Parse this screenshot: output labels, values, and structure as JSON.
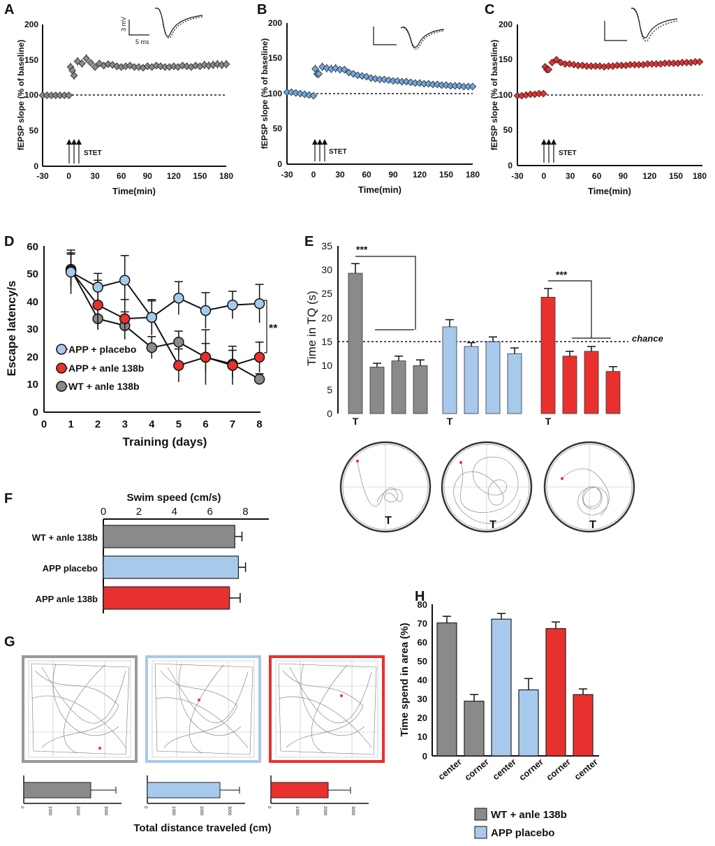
{
  "colors": {
    "wt": "#8a8a8a",
    "placebo": "#a7c9ec",
    "placebo_marker": "#6fa8e0",
    "anle": "#e8312f",
    "black": "#111111"
  },
  "panel_labels": [
    "A",
    "B",
    "C",
    "D",
    "E",
    "F",
    "G",
    "H"
  ],
  "ltp": {
    "ylabel": "fEPSP slope (% of baseline)",
    "xlabel": "Time(min)",
    "stim_label": "STET",
    "scale_a_mv": "3 mV",
    "scale_a_ms": "5 ms",
    "yticks": [
      "0",
      "50",
      "100",
      "150",
      "200"
    ],
    "xticks": [
      "-30",
      "0",
      "30",
      "60",
      "90",
      "120",
      "150",
      "180"
    ],
    "ylim": [
      0,
      200
    ],
    "xlim": [
      -30,
      180
    ]
  },
  "panel_d": {
    "ylabel": "Escape latency/s",
    "xlabel": "Training (days)",
    "yticks": [
      "0",
      "10",
      "20",
      "30",
      "40",
      "50",
      "60"
    ],
    "xticks": [
      "0",
      "1",
      "2",
      "3",
      "4",
      "5",
      "6",
      "7",
      "8"
    ],
    "legend": [
      "APP + placebo",
      "APP + anle 138b",
      "WT + anle 138b"
    ],
    "sig": "**"
  },
  "panel_e": {
    "ylabel": "Time in TQ (s)",
    "yticks": [
      "0",
      "5",
      "10",
      "15",
      "20",
      "25",
      "30",
      "35"
    ],
    "chance_label": "chance",
    "t_label": "T",
    "sig": "***"
  },
  "panel_f": {
    "xlabel": "Swim speed (cm/s)",
    "xticks": [
      "0",
      "2",
      "4",
      "6",
      "8"
    ],
    "groups": [
      "WT + anle 138b",
      "APP placebo",
      "APP anle 138b"
    ]
  },
  "panel_g": {
    "xlabel": "Total distance traveled (cm)",
    "xticks": [
      "0",
      "1000",
      "2000",
      "3000"
    ]
  },
  "panel_h": {
    "ylabel": "Time spend in area (%)",
    "yticks": [
      "0",
      "10",
      "20",
      "30",
      "40",
      "50",
      "60",
      "70",
      "80"
    ],
    "categories": [
      "center",
      "corner",
      "center",
      "corner",
      "corner",
      "center"
    ],
    "legend": [
      "WT + anle 138b",
      "APP placebo"
    ]
  },
  "chart_data": [
    {
      "panel": "A",
      "type": "scatter",
      "series": [
        {
          "color": "#8a8a8a",
          "x": [
            -30,
            -25,
            -20,
            -15,
            -10,
            -5,
            0,
            2,
            4,
            6,
            10,
            15,
            20,
            25,
            30,
            35,
            40,
            45,
            50,
            55,
            60,
            65,
            70,
            75,
            80,
            85,
            90,
            95,
            100,
            105,
            110,
            115,
            120,
            125,
            130,
            135,
            140,
            145,
            150,
            155,
            160,
            165,
            170,
            175,
            180
          ],
          "y": [
            100,
            100,
            100,
            100,
            100,
            100,
            100,
            140,
            135,
            128,
            148,
            145,
            152,
            146,
            140,
            145,
            142,
            144,
            143,
            141,
            140,
            141,
            142,
            140,
            140,
            139,
            141,
            140,
            142,
            141,
            140,
            140,
            141,
            140,
            142,
            141,
            140,
            142,
            141,
            143,
            142,
            143,
            144,
            143,
            144
          ],
          "error": [
            2,
            2,
            2,
            2,
            2,
            2,
            2,
            6,
            5,
            6,
            6,
            6,
            6,
            5,
            5,
            5,
            5,
            5,
            5,
            5,
            5,
            5,
            5,
            5,
            5,
            5,
            5,
            5,
            5,
            5,
            5,
            5,
            5,
            5,
            5,
            5,
            5,
            5,
            5,
            6,
            6,
            6,
            6,
            6,
            6
          ]
        }
      ]
    },
    {
      "panel": "B",
      "type": "scatter",
      "series": [
        {
          "color": "#6fa8e0",
          "x": [
            -30,
            -25,
            -20,
            -15,
            -10,
            -5,
            0,
            2,
            4,
            6,
            10,
            15,
            20,
            25,
            30,
            35,
            40,
            45,
            50,
            55,
            60,
            65,
            70,
            75,
            80,
            85,
            90,
            95,
            100,
            105,
            110,
            115,
            120,
            125,
            130,
            135,
            140,
            145,
            150,
            155,
            160,
            165,
            170,
            175,
            180
          ],
          "y": [
            102,
            102,
            101,
            100,
            99,
            98,
            97,
            135,
            128,
            128,
            138,
            136,
            135,
            136,
            134,
            134,
            130,
            128,
            126,
            125,
            124,
            122,
            121,
            120,
            120,
            119,
            118,
            118,
            117,
            117,
            116,
            115,
            115,
            114,
            114,
            113,
            113,
            112,
            112,
            111,
            111,
            111,
            110,
            110,
            110
          ],
          "error": [
            3,
            3,
            3,
            3,
            3,
            3,
            3,
            6,
            6,
            6,
            6,
            6,
            6,
            6,
            5,
            5,
            5,
            5,
            4,
            4,
            4,
            4,
            4,
            4,
            4,
            4,
            4,
            4,
            4,
            4,
            4,
            4,
            3,
            3,
            3,
            3,
            3,
            3,
            3,
            3,
            3,
            3,
            3,
            3,
            3
          ]
        }
      ]
    },
    {
      "panel": "C",
      "type": "scatter",
      "series": [
        {
          "color": "#e8312f",
          "x": [
            -30,
            -25,
            -20,
            -15,
            -10,
            -5,
            0,
            2,
            4,
            6,
            10,
            15,
            20,
            25,
            30,
            35,
            40,
            45,
            50,
            55,
            60,
            65,
            70,
            75,
            80,
            85,
            90,
            95,
            100,
            105,
            110,
            115,
            120,
            125,
            130,
            135,
            140,
            145,
            150,
            155,
            160,
            165,
            170,
            175,
            180
          ],
          "y": [
            99,
            99,
            100,
            101,
            101,
            102,
            102,
            140,
            136,
            136,
            146,
            150,
            146,
            144,
            144,
            143,
            142,
            142,
            141,
            141,
            141,
            141,
            140,
            141,
            141,
            142,
            142,
            142,
            143,
            143,
            143,
            143,
            144,
            144,
            144,
            144,
            145,
            145,
            145,
            145,
            146,
            146,
            146,
            147,
            147
          ],
          "error": [
            2,
            2,
            2,
            2,
            2,
            2,
            2,
            5,
            5,
            5,
            5,
            5,
            5,
            5,
            5,
            5,
            5,
            5,
            5,
            5,
            5,
            5,
            5,
            5,
            5,
            5,
            5,
            5,
            5,
            5,
            5,
            5,
            5,
            5,
            5,
            5,
            5,
            5,
            5,
            5,
            5,
            5,
            5,
            5,
            5
          ]
        }
      ]
    },
    {
      "panel": "D",
      "type": "line",
      "x": [
        1,
        2,
        3,
        4,
        5,
        6,
        7,
        8
      ],
      "series": [
        {
          "name": "APP + placebo",
          "color": "#a7c9ec",
          "values": [
            51,
            45.5,
            48,
            34.5,
            41.5,
            37,
            39,
            39.5
          ],
          "error": [
            8,
            5,
            9,
            6.5,
            6,
            6.5,
            5,
            7
          ]
        },
        {
          "name": "APP + anle 138b",
          "color": "#e8312f",
          "values": [
            51.5,
            39,
            34,
            34.5,
            17,
            20,
            17,
            20
          ],
          "error": [
            6,
            9,
            7,
            6,
            6,
            10,
            7,
            5.5
          ]
        },
        {
          "name": "WT + anle 138b",
          "color": "#8a8a8a",
          "values": [
            52,
            34,
            31.5,
            23.5,
            25.5,
            20,
            17.5,
            12
          ],
          "error": [
            6,
            4,
            5,
            4,
            4,
            5,
            5,
            2
          ]
        }
      ],
      "ylim": [
        0,
        60
      ]
    },
    {
      "panel": "E",
      "type": "bar",
      "groups": [
        {
          "color": "#8a8a8a",
          "values": [
            29.3,
            9.7,
            11,
            10
          ],
          "error": [
            2,
            0.8,
            1,
            1.2
          ]
        },
        {
          "color": "#a7c9ec",
          "values": [
            18.1,
            14,
            15,
            12.5
          ],
          "error": [
            1.5,
            0.8,
            1,
            1.2
          ]
        },
        {
          "color": "#e8312f",
          "values": [
            24.3,
            12,
            13,
            8.8
          ],
          "error": [
            1.8,
            1,
            1,
            1
          ]
        }
      ],
      "chance": 15,
      "ylim": [
        0,
        35
      ]
    },
    {
      "panel": "F",
      "type": "bar",
      "orientation": "horizontal",
      "categories": [
        "WT + anle 138b",
        "APP placebo",
        "APP anle 138b"
      ],
      "values": [
        7.4,
        7.6,
        7.1
      ],
      "error": [
        0.4,
        0.4,
        0.6
      ],
      "colors": [
        "#8a8a8a",
        "#a7c9ec",
        "#e8312f"
      ],
      "xlim": [
        0,
        9
      ]
    },
    {
      "panel": "G",
      "type": "bar",
      "orientation": "horizontal",
      "values": [
        2400,
        2600,
        2050
      ],
      "error": [
        900,
        700,
        800
      ],
      "colors": [
        "#8a8a8a",
        "#a7c9ec",
        "#e8312f"
      ],
      "xlim": [
        0,
        3500
      ]
    },
    {
      "panel": "H",
      "type": "bar",
      "categories": [
        "center",
        "corner",
        "center",
        "corner",
        "corner",
        "center"
      ],
      "values": [
        70.5,
        29,
        72.5,
        35,
        67.5,
        32.5
      ],
      "error": [
        3.5,
        3.5,
        3,
        6,
        3.5,
        3
      ],
      "colors": [
        "#8a8a8a",
        "#8a8a8a",
        "#a7c9ec",
        "#a7c9ec",
        "#e8312f",
        "#e8312f"
      ],
      "ylim": [
        0,
        80
      ]
    }
  ]
}
